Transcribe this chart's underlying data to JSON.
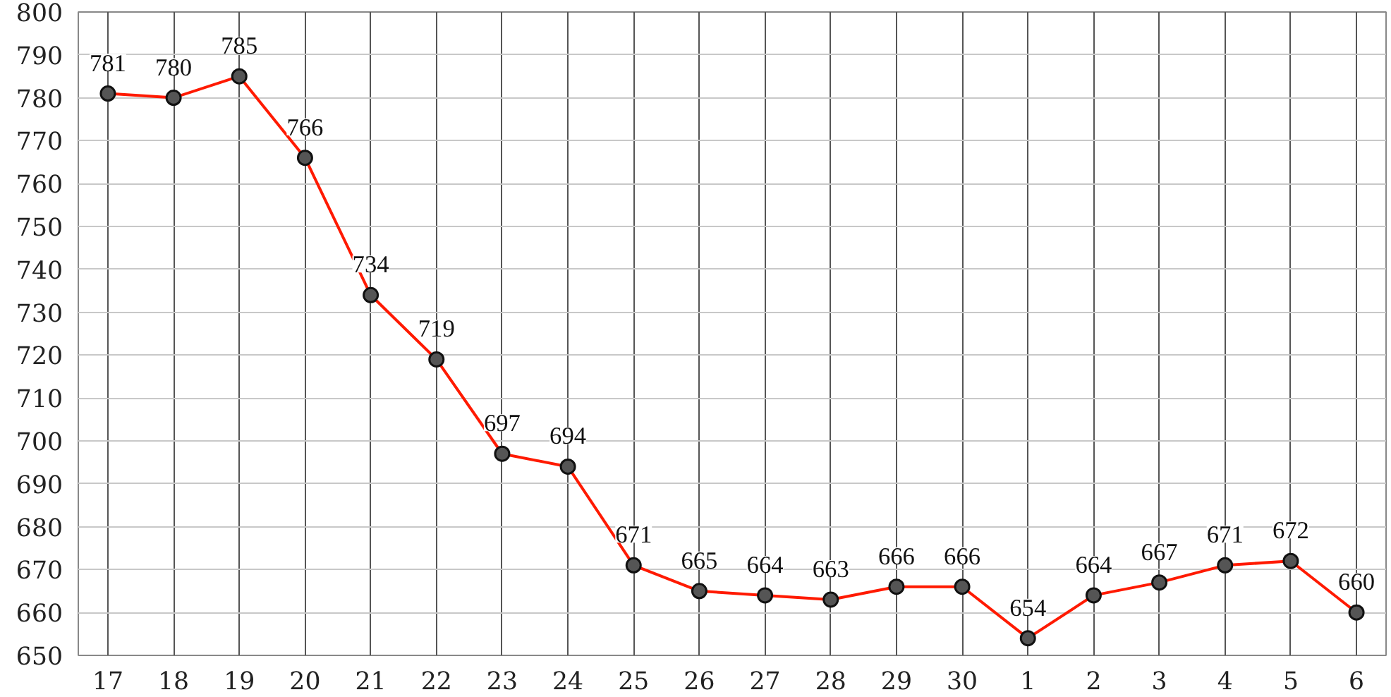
{
  "chart_data": {
    "type": "line",
    "categories": [
      "17",
      "18",
      "19",
      "20",
      "21",
      "22",
      "23",
      "24",
      "25",
      "26",
      "27",
      "28",
      "29",
      "30",
      "1",
      "2",
      "3",
      "4",
      "5",
      "6"
    ],
    "series": [
      {
        "color": "#ff1a00",
        "values": [
          781,
          780,
          785,
          766,
          734,
          719,
          697,
          694,
          671,
          665,
          664,
          663,
          666,
          666,
          654,
          664,
          667,
          671,
          672,
          660
        ]
      }
    ],
    "ylim": [
      650,
      800
    ],
    "yticks": [
      650,
      660,
      670,
      680,
      690,
      700,
      710,
      720,
      730,
      740,
      750,
      760,
      770,
      780,
      790,
      800
    ],
    "grid": true,
    "marker": "circle",
    "line_style": "solid",
    "data_labels": true
  }
}
